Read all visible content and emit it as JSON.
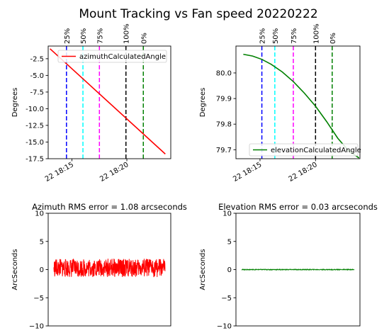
{
  "figure": {
    "suptitle": "Mount Tracking vs Fan speed 20220222"
  },
  "colors": {
    "azimuth": "#ff0000",
    "elevation": "#008000",
    "rms_az": "#ff0000",
    "rms_el": "#008000"
  },
  "chart_data": [
    {
      "type": "line",
      "title": "",
      "xlabel": "",
      "ylabel": "Degrees",
      "x_ticks": [
        "22 18:15",
        "22 18:20"
      ],
      "x_tick_times": [
        "2022-02-22 18:15",
        "2022-02-22 18:20"
      ],
      "xlim": [
        "2022-02-22 18:12:50",
        "2022-02-22 18:24:00"
      ],
      "y_ticks": [
        "-2.5",
        "-5.0",
        "-7.5",
        "-10.0",
        "-12.5",
        "-15.0",
        "-17.5"
      ],
      "y_tick_values": [
        -2.5,
        -5.0,
        -7.5,
        -10.0,
        -12.5,
        -15.0,
        -17.5
      ],
      "ylim": [
        -17.5,
        -0.6
      ],
      "legend": {
        "label": "azimuthCalculatedAngle",
        "placement": "top-right"
      },
      "series": [
        {
          "name": "azimuthCalculatedAngle",
          "x": [
            "2022-02-22 18:13:00",
            "2022-02-22 18:23:30"
          ],
          "y": [
            -1.0,
            -16.8
          ],
          "color": "#ff0000"
        }
      ],
      "vlines": [
        {
          "label": "25%",
          "time": "2022-02-22 18:14:30",
          "color": "#0000ff"
        },
        {
          "label": "50%",
          "time": "2022-02-22 18:16:00",
          "color": "#00ffff"
        },
        {
          "label": "75%",
          "time": "2022-02-22 18:17:30",
          "color": "#ff00ff"
        },
        {
          "label": "100%",
          "time": "2022-02-22 18:19:55",
          "color": "#000000"
        },
        {
          "label": "0%",
          "time": "2022-02-22 18:21:30",
          "color": "#008000"
        }
      ]
    },
    {
      "type": "line",
      "title": "",
      "xlabel": "",
      "ylabel": "Degrees",
      "x_ticks": [
        "22 18:15",
        "22 18:20"
      ],
      "x_tick_times": [
        "2022-02-22 18:15",
        "2022-02-22 18:20"
      ],
      "xlim": [
        "2022-02-22 18:12:50",
        "2022-02-22 18:24:00"
      ],
      "y_ticks": [
        "80.0",
        "79.9",
        "79.8",
        "79.7"
      ],
      "y_tick_values": [
        80.0,
        79.9,
        79.8,
        79.7
      ],
      "ylim": [
        79.665,
        80.105
      ],
      "legend": {
        "label": "elevationCalculatedAngle",
        "placement": "bottom-right"
      },
      "series": [
        {
          "name": "elevationCalculatedAngle",
          "x": [
            "2022-02-22 18:13:30",
            "2022-02-22 18:14:20",
            "2022-02-22 18:15:10",
            "2022-02-22 18:16:00",
            "2022-02-22 18:17:00",
            "2022-02-22 18:18:00",
            "2022-02-22 18:19:00",
            "2022-02-22 18:20:00",
            "2022-02-22 18:21:00",
            "2022-02-22 18:22:00",
            "2022-02-22 18:23:00",
            "2022-02-22 18:23:55"
          ],
          "y": [
            80.073,
            80.066,
            80.053,
            80.034,
            80.004,
            79.966,
            79.921,
            79.87,
            79.81,
            79.745,
            79.695,
            79.668
          ],
          "color": "#008000"
        }
      ],
      "vlines": [
        {
          "label": "25%",
          "time": "2022-02-22 18:15:10",
          "color": "#0000ff"
        },
        {
          "label": "50%",
          "time": "2022-02-22 18:16:20",
          "color": "#00ffff"
        },
        {
          "label": "75%",
          "time": "2022-02-22 18:18:00",
          "color": "#ff00ff"
        },
        {
          "label": "100%",
          "time": "2022-02-22 18:20:00",
          "color": "#000000"
        },
        {
          "label": "0%",
          "time": "2022-02-22 18:21:30",
          "color": "#008000"
        }
      ]
    },
    {
      "type": "line",
      "title": "Azimuth RMS error = 1.08 arcseconds",
      "xlabel": "",
      "ylabel": "ArcSeconds",
      "y_ticks": [
        "10",
        "5",
        "0",
        "−5",
        "−10"
      ],
      "y_tick_values": [
        10,
        5,
        0,
        -5,
        -10
      ],
      "ylim": [
        -10,
        10
      ],
      "series": [
        {
          "name": "",
          "color": "#ff0000",
          "mean": 0.3,
          "amplitude": 1.6
        }
      ]
    },
    {
      "type": "line",
      "title": "Elevation RMS error = 0.03 arcseconds",
      "xlabel": "",
      "ylabel": "ArcSeconds",
      "y_ticks": [
        "10",
        "5",
        "0",
        "−5",
        "−10"
      ],
      "y_tick_values": [
        10,
        5,
        0,
        -5,
        -10
      ],
      "ylim": [
        -10,
        10
      ],
      "series": [
        {
          "name": "",
          "color": "#008000",
          "mean": 0.0,
          "amplitude": 0.08
        }
      ]
    }
  ]
}
